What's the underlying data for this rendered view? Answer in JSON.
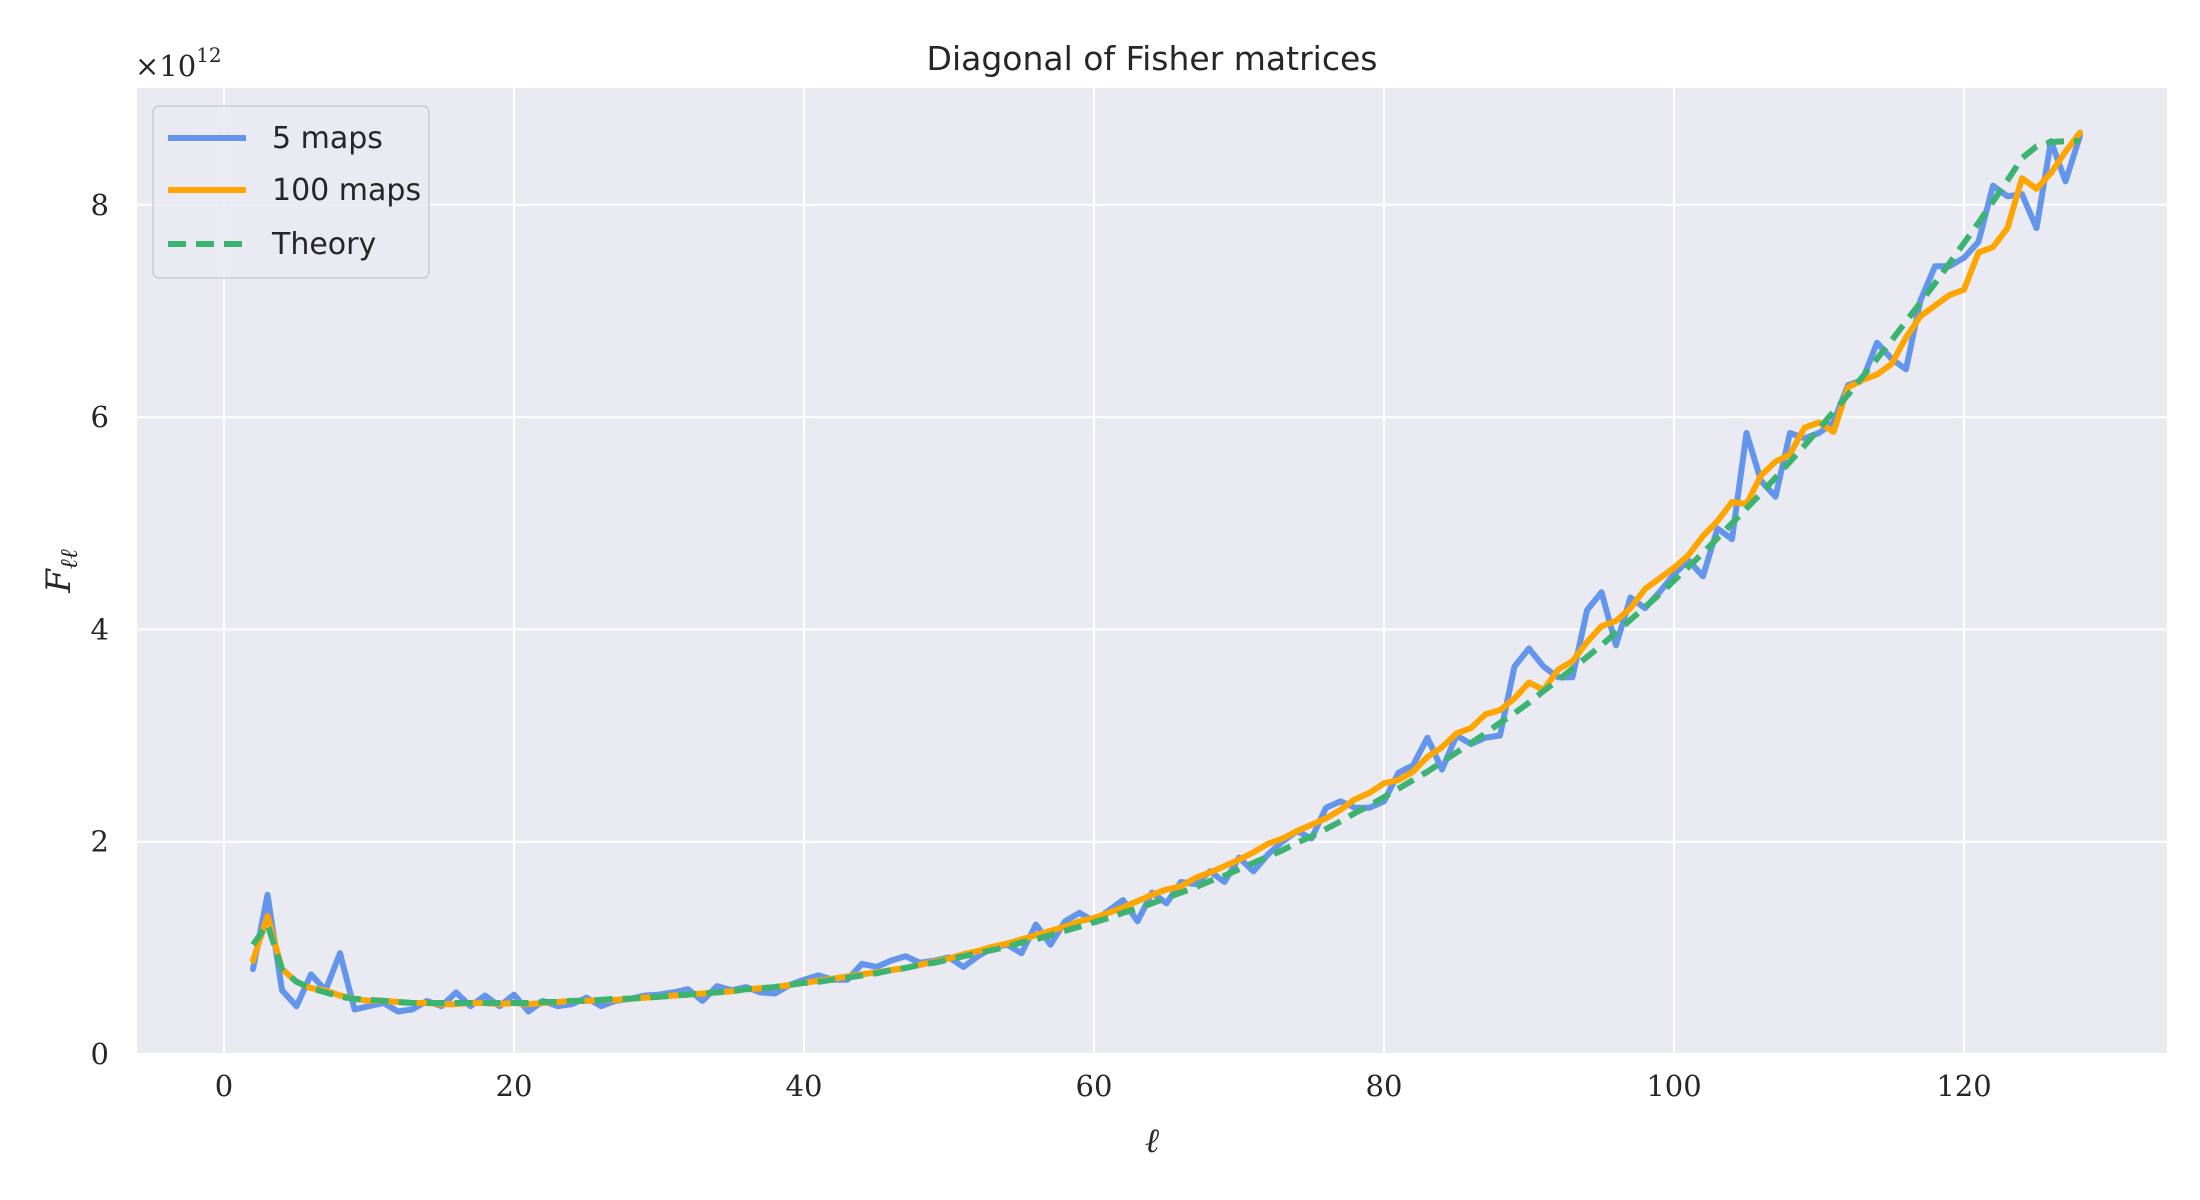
{
  "chart_data": {
    "type": "line",
    "title": "Diagonal of Fisher matrices",
    "xlabel": "ℓ",
    "ylabel": "F",
    "ylabel_sub": "ℓℓ",
    "y_multiplier": "×10",
    "y_multiplier_exp": "12",
    "xlim": [
      -6,
      134
    ],
    "ylim": [
      0,
      9.1
    ],
    "x_ticks": [
      0,
      20,
      40,
      60,
      80,
      100,
      120
    ],
    "y_ticks": [
      0,
      2,
      4,
      6,
      8
    ],
    "grid": true,
    "legend_position": "top-left",
    "x_start": 2,
    "series": [
      {
        "name": "5 maps",
        "color": "#6495ED",
        "dash": "solid",
        "values": [
          0.8,
          1.5,
          0.6,
          0.45,
          0.75,
          0.6,
          0.95,
          0.42,
          0.45,
          0.48,
          0.4,
          0.42,
          0.5,
          0.45,
          0.58,
          0.45,
          0.55,
          0.45,
          0.56,
          0.4,
          0.5,
          0.45,
          0.47,
          0.53,
          0.45,
          0.5,
          0.52,
          0.55,
          0.56,
          0.58,
          0.61,
          0.5,
          0.64,
          0.6,
          0.63,
          0.58,
          0.57,
          0.65,
          0.7,
          0.74,
          0.7,
          0.7,
          0.85,
          0.82,
          0.88,
          0.92,
          0.86,
          0.88,
          0.91,
          0.82,
          0.92,
          1.0,
          1.03,
          0.95,
          1.22,
          1.03,
          1.25,
          1.33,
          1.25,
          1.35,
          1.45,
          1.25,
          1.52,
          1.42,
          1.62,
          1.6,
          1.72,
          1.62,
          1.85,
          1.72,
          1.88,
          2.0,
          2.1,
          2.03,
          2.32,
          2.38,
          2.32,
          2.32,
          2.38,
          2.65,
          2.72,
          2.98,
          2.68,
          3.0,
          2.92,
          2.98,
          3.0,
          3.65,
          3.82,
          3.65,
          3.55,
          3.55,
          4.18,
          4.35,
          3.85,
          4.3,
          4.2,
          4.35,
          4.52,
          4.65,
          4.5,
          4.95,
          4.85,
          5.85,
          5.4,
          5.25,
          5.85,
          5.8,
          5.85,
          5.95,
          6.3,
          6.35,
          6.7,
          6.55,
          6.45,
          7.1,
          7.42,
          7.42,
          7.5,
          7.65,
          8.18,
          8.08,
          8.1,
          7.78,
          8.6,
          8.22,
          8.65
        ]
      },
      {
        "name": "100 maps",
        "color": "#FFA500",
        "dash": "solid",
        "values": [
          0.88,
          1.3,
          0.8,
          0.68,
          0.62,
          0.6,
          0.55,
          0.52,
          0.5,
          0.5,
          0.49,
          0.48,
          0.48,
          0.47,
          0.47,
          0.48,
          0.48,
          0.47,
          0.48,
          0.47,
          0.48,
          0.49,
          0.5,
          0.5,
          0.51,
          0.51,
          0.52,
          0.53,
          0.54,
          0.55,
          0.56,
          0.57,
          0.58,
          0.59,
          0.61,
          0.62,
          0.63,
          0.65,
          0.67,
          0.69,
          0.71,
          0.73,
          0.75,
          0.77,
          0.79,
          0.81,
          0.84,
          0.87,
          0.9,
          0.94,
          0.97,
          1.01,
          1.04,
          1.08,
          1.12,
          1.16,
          1.2,
          1.25,
          1.28,
          1.33,
          1.38,
          1.44,
          1.5,
          1.55,
          1.58,
          1.66,
          1.71,
          1.77,
          1.83,
          1.9,
          1.98,
          2.03,
          2.1,
          2.16,
          2.22,
          2.3,
          2.4,
          2.46,
          2.55,
          2.58,
          2.66,
          2.8,
          2.89,
          3.02,
          3.07,
          3.2,
          3.24,
          3.35,
          3.5,
          3.43,
          3.62,
          3.7,
          3.88,
          4.03,
          4.08,
          4.2,
          4.38,
          4.48,
          4.58,
          4.7,
          4.88,
          5.02,
          5.2,
          5.18,
          5.45,
          5.58,
          5.65,
          5.9,
          5.95,
          5.86,
          6.28,
          6.35,
          6.4,
          6.5,
          6.75,
          6.95,
          7.05,
          7.15,
          7.2,
          7.55,
          7.6,
          7.78,
          8.25,
          8.15,
          8.3,
          8.5,
          8.68
        ]
      },
      {
        "name": "Theory",
        "color": "#3CB371",
        "dash": "dashed",
        "values": [
          1.03,
          1.22,
          0.8,
          0.68,
          0.62,
          0.58,
          0.54,
          0.52,
          0.51,
          0.5,
          0.49,
          0.48,
          0.48,
          0.48,
          0.48,
          0.48,
          0.48,
          0.48,
          0.48,
          0.48,
          0.49,
          0.49,
          0.5,
          0.5,
          0.51,
          0.52,
          0.52,
          0.53,
          0.54,
          0.55,
          0.56,
          0.57,
          0.58,
          0.59,
          0.61,
          0.62,
          0.63,
          0.65,
          0.67,
          0.68,
          0.7,
          0.72,
          0.74,
          0.76,
          0.79,
          0.81,
          0.84,
          0.86,
          0.89,
          0.92,
          0.95,
          0.98,
          1.01,
          1.05,
          1.08,
          1.12,
          1.16,
          1.2,
          1.24,
          1.28,
          1.33,
          1.37,
          1.42,
          1.47,
          1.52,
          1.57,
          1.63,
          1.68,
          1.74,
          1.8,
          1.86,
          1.92,
          1.99,
          2.05,
          2.12,
          2.19,
          2.27,
          2.34,
          2.42,
          2.5,
          2.58,
          2.66,
          2.75,
          2.84,
          2.93,
          3.02,
          3.12,
          3.21,
          3.31,
          3.42,
          3.52,
          3.63,
          3.74,
          3.85,
          3.97,
          4.09,
          4.21,
          4.33,
          4.46,
          4.59,
          4.72,
          4.86,
          5.0,
          5.14,
          5.28,
          5.43,
          5.58,
          5.73,
          5.89,
          6.05,
          6.21,
          6.38,
          6.55,
          6.72,
          6.9,
          7.08,
          7.26,
          7.45,
          7.64,
          7.83,
          8.03,
          8.23,
          8.44,
          8.55,
          8.59,
          8.6,
          8.6
        ]
      }
    ]
  }
}
